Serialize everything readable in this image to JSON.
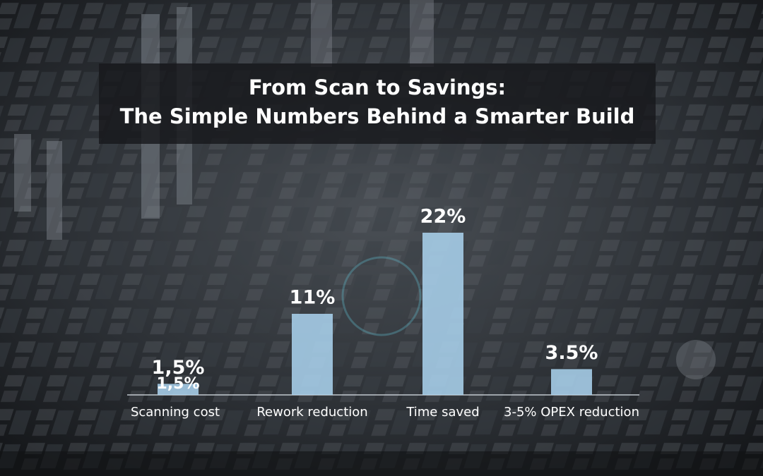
{
  "chart_data": {
    "type": "bar",
    "title": [
      "From Scan to Savings:",
      "The Simple Numbers Behind a Smarter Build"
    ],
    "categories": [
      "Scanning cost",
      "Rework reduction",
      "Time saved",
      "3-5% OPEX reduction"
    ],
    "values": [
      1.5,
      11,
      22,
      3.5
    ],
    "value_labels": [
      "1,5%",
      "11%",
      "22%",
      "3.5%"
    ],
    "color": "#a9d0ec"
  }
}
